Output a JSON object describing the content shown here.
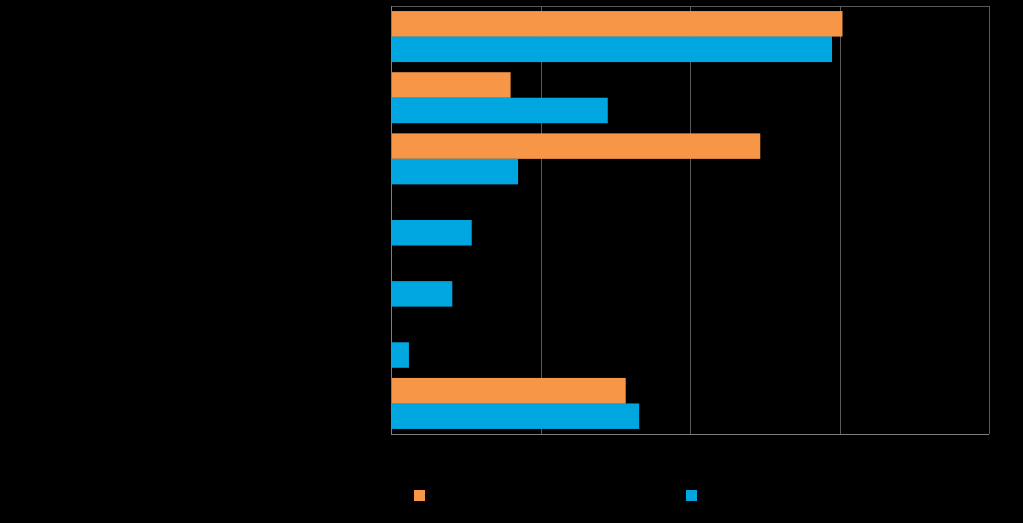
{
  "chart_data": {
    "type": "bar",
    "orientation": "horizontal",
    "title": "",
    "xlabel": "",
    "ylabel": "",
    "categories": [
      "",
      "",
      "",
      "",
      "",
      "",
      ""
    ],
    "series": [
      {
        "name": "",
        "color": "#F79646",
        "values": [
          30.2,
          8.0,
          24.7,
          0,
          0,
          0,
          15.7
        ]
      },
      {
        "name": "",
        "color": "#00A6E0",
        "values": [
          29.5,
          14.5,
          8.5,
          5.4,
          4.1,
          1.2,
          16.6
        ]
      }
    ],
    "xlim": [
      0,
      40
    ],
    "gridlines": [
      10,
      20,
      30,
      40
    ],
    "grid": true,
    "legend_position": "bottom",
    "colors": {
      "background": "#000000",
      "grid": "#595959",
      "axis": "#7F7F7F"
    }
  }
}
